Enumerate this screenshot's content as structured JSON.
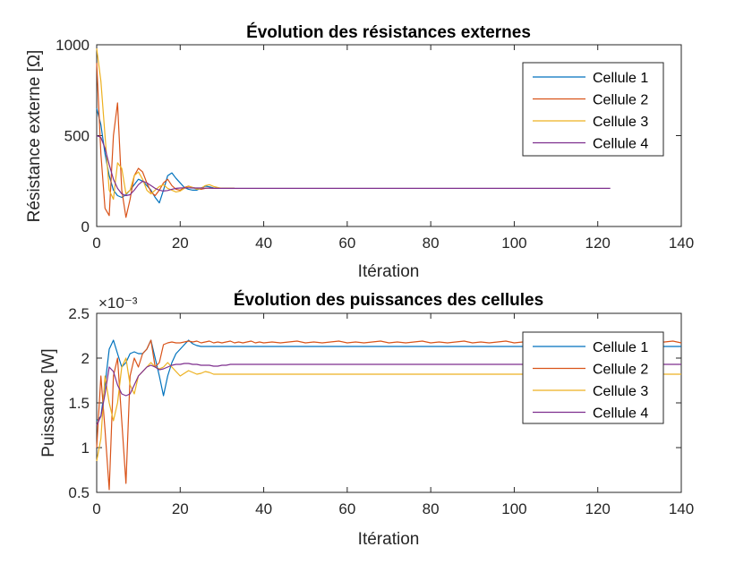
{
  "chart_data": [
    {
      "type": "line",
      "title": "Évolution des résistances externes",
      "xlabel": "Itération",
      "ylabel": "Résistance externe [Ω]",
      "xlim": [
        0,
        140
      ],
      "ylim": [
        0,
        1000
      ],
      "xticks": [
        0,
        20,
        40,
        60,
        80,
        100,
        120,
        140
      ],
      "yticks": [
        0,
        500,
        1000
      ],
      "xtick_labels": [
        "0",
        "20",
        "40",
        "60",
        "80",
        "100",
        "120",
        "140"
      ],
      "ytick_labels": [
        "0",
        "500",
        "1000"
      ],
      "exponent_label": "",
      "legend_position": "top-right",
      "grid": false,
      "series": [
        {
          "name": "Cellule 1",
          "color": "#0072BD",
          "x": [
            0,
            1,
            2,
            3,
            4,
            5,
            6,
            7,
            8,
            9,
            10,
            11,
            12,
            13,
            14,
            15,
            16,
            17,
            18,
            19,
            20,
            21,
            22,
            23,
            24,
            25,
            26,
            27,
            28,
            29,
            30,
            31,
            32,
            33
          ],
          "y": [
            650,
            560,
            400,
            280,
            200,
            170,
            160,
            175,
            200,
            230,
            260,
            250,
            225,
            200,
            160,
            130,
            200,
            280,
            295,
            265,
            240,
            215,
            205,
            200,
            200,
            212,
            222,
            218,
            212,
            210,
            210,
            210,
            210,
            210
          ]
        },
        {
          "name": "Cellule 2",
          "color": "#D95319",
          "x": [
            0,
            1,
            2,
            3,
            4,
            5,
            6,
            7,
            8,
            9,
            10,
            11,
            12,
            13,
            14,
            15,
            16,
            17,
            18,
            19,
            20,
            21,
            22,
            23,
            24,
            25,
            26,
            27,
            28,
            29,
            30,
            31,
            32,
            33
          ],
          "y": [
            900,
            400,
            100,
            60,
            500,
            680,
            200,
            50,
            150,
            280,
            320,
            300,
            240,
            190,
            170,
            200,
            240,
            260,
            225,
            205,
            200,
            215,
            222,
            215,
            210,
            205,
            210,
            212,
            210,
            210,
            210,
            210,
            210,
            210
          ]
        },
        {
          "name": "Cellule 3",
          "color": "#EDB120",
          "x": [
            0,
            1,
            2,
            3,
            4,
            5,
            6,
            7,
            8,
            9,
            10,
            11,
            12,
            13,
            14,
            15,
            16,
            17,
            18,
            19,
            20,
            21,
            22,
            23,
            24,
            25,
            26,
            27,
            28,
            29,
            30,
            31,
            32,
            33
          ],
          "y": [
            980,
            800,
            500,
            200,
            150,
            350,
            320,
            180,
            200,
            280,
            300,
            260,
            200,
            180,
            200,
            220,
            230,
            210,
            200,
            190,
            195,
            210,
            220,
            215,
            205,
            210,
            225,
            230,
            220,
            215,
            210,
            210,
            210,
            210
          ]
        },
        {
          "name": "Cellule 4",
          "color": "#7E2F8E",
          "x": [
            0,
            1,
            2,
            3,
            4,
            5,
            6,
            7,
            8,
            9,
            10,
            11,
            12,
            13,
            14,
            15,
            16,
            17,
            18,
            19,
            20,
            21,
            22,
            23,
            24,
            25,
            26,
            27,
            28,
            29,
            30,
            31,
            32,
            33,
            40,
            60,
            80,
            100,
            120,
            123
          ],
          "y": [
            500,
            490,
            430,
            340,
            260,
            210,
            180,
            170,
            175,
            200,
            230,
            250,
            240,
            225,
            210,
            200,
            195,
            198,
            205,
            210,
            212,
            213,
            213,
            212,
            212,
            212,
            211,
            211,
            210,
            210,
            210,
            210,
            210,
            210,
            210,
            210,
            210,
            210,
            210,
            210
          ]
        }
      ]
    },
    {
      "type": "line",
      "title": "Évolution des puissances des cellules",
      "xlabel": "Itération",
      "ylabel": "Puissance [W]",
      "xlim": [
        0,
        140
      ],
      "ylim": [
        0.5,
        2.5
      ],
      "xticks": [
        0,
        20,
        40,
        60,
        80,
        100,
        120,
        140
      ],
      "yticks": [
        0.5,
        1,
        1.5,
        2,
        2.5
      ],
      "xtick_labels": [
        "0",
        "20",
        "40",
        "60",
        "80",
        "100",
        "120",
        "140"
      ],
      "ytick_labels": [
        "0.5",
        "1",
        "1.5",
        "2",
        "2.5"
      ],
      "y_multiplier": 0.001,
      "exponent_label": "×10⁻³",
      "legend_position": "top-right",
      "grid": false,
      "series": [
        {
          "name": "Cellule 1",
          "color": "#0072BD",
          "x": [
            0,
            1,
            2,
            3,
            4,
            5,
            6,
            7,
            8,
            9,
            10,
            11,
            12,
            13,
            14,
            15,
            16,
            17,
            18,
            19,
            20,
            21,
            22,
            23,
            24,
            25,
            26,
            28,
            30,
            35,
            40,
            60,
            80,
            100,
            120,
            140
          ],
          "y": [
            1.3,
            1.35,
            1.7,
            2.1,
            2.2,
            2.05,
            1.9,
            1.95,
            2.05,
            2.07,
            2.05,
            2.05,
            2.1,
            2.2,
            2.0,
            1.8,
            1.58,
            1.8,
            1.95,
            2.05,
            2.1,
            2.15,
            2.2,
            2.16,
            2.14,
            2.13,
            2.13,
            2.13,
            2.13,
            2.13,
            2.13,
            2.13,
            2.13,
            2.13,
            2.13,
            2.13
          ]
        },
        {
          "name": "Cellule 2",
          "color": "#D95319",
          "x": [
            0,
            1,
            2,
            3,
            4,
            5,
            6,
            7,
            8,
            9,
            10,
            11,
            12,
            13,
            14,
            15,
            16,
            17,
            18,
            19,
            20,
            21,
            22,
            23,
            24,
            25,
            26,
            27,
            28,
            29,
            30,
            31,
            32,
            33,
            34,
            35,
            36,
            37,
            38,
            39,
            40,
            42,
            44,
            46,
            48,
            50,
            52,
            54,
            56,
            58,
            60,
            62,
            64,
            66,
            68,
            70,
            72,
            74,
            76,
            78,
            80,
            82,
            84,
            86,
            88,
            90,
            92,
            94,
            96,
            98,
            100,
            102,
            104,
            106,
            108,
            110,
            112,
            114,
            116,
            118,
            120,
            122,
            124,
            126,
            128,
            130,
            132,
            134,
            136,
            138,
            140
          ],
          "y": [
            1.0,
            1.8,
            1.2,
            0.53,
            1.8,
            2.0,
            1.3,
            0.6,
            1.8,
            2.0,
            1.9,
            2.05,
            2.1,
            2.2,
            1.9,
            1.95,
            2.15,
            2.17,
            2.18,
            2.17,
            2.17,
            2.18,
            2.19,
            2.18,
            2.19,
            2.17,
            2.18,
            2.19,
            2.17,
            2.18,
            2.17,
            2.18,
            2.19,
            2.17,
            2.18,
            2.17,
            2.18,
            2.19,
            2.17,
            2.18,
            2.17,
            2.18,
            2.17,
            2.18,
            2.19,
            2.17,
            2.18,
            2.17,
            2.18,
            2.19,
            2.17,
            2.18,
            2.17,
            2.18,
            2.19,
            2.17,
            2.18,
            2.17,
            2.18,
            2.19,
            2.17,
            2.18,
            2.17,
            2.18,
            2.19,
            2.17,
            2.18,
            2.17,
            2.18,
            2.19,
            2.17,
            2.18,
            2.17,
            2.18,
            2.19,
            2.17,
            2.18,
            2.17,
            2.18,
            2.19,
            2.17,
            2.18,
            2.17,
            2.18,
            2.19,
            2.17,
            2.18,
            2.17,
            2.18,
            2.19,
            2.17
          ]
        },
        {
          "name": "Cellule 3",
          "color": "#EDB120",
          "x": [
            0,
            1,
            2,
            3,
            4,
            5,
            6,
            7,
            8,
            9,
            10,
            11,
            12,
            13,
            14,
            15,
            16,
            17,
            18,
            19,
            20,
            21,
            22,
            23,
            24,
            25,
            26,
            27,
            28,
            29,
            30,
            35,
            40,
            60,
            80,
            100,
            120,
            140
          ],
          "y": [
            0.85,
            1.1,
            1.8,
            1.5,
            1.3,
            1.5,
            1.9,
            2.0,
            1.7,
            1.6,
            1.8,
            1.85,
            1.9,
            1.95,
            1.9,
            1.88,
            1.9,
            1.95,
            1.9,
            1.85,
            1.8,
            1.83,
            1.86,
            1.84,
            1.82,
            1.83,
            1.85,
            1.84,
            1.82,
            1.82,
            1.82,
            1.82,
            1.82,
            1.82,
            1.82,
            1.82,
            1.82,
            1.82
          ]
        },
        {
          "name": "Cellule 4",
          "color": "#7E2F8E",
          "x": [
            0,
            1,
            2,
            3,
            4,
            5,
            6,
            7,
            8,
            9,
            10,
            11,
            12,
            13,
            14,
            15,
            16,
            17,
            18,
            19,
            20,
            21,
            22,
            23,
            24,
            25,
            26,
            27,
            28,
            29,
            30,
            31,
            32,
            35,
            40,
            60,
            80,
            100,
            120,
            140
          ],
          "y": [
            1.25,
            1.35,
            1.6,
            1.9,
            1.85,
            1.7,
            1.6,
            1.58,
            1.6,
            1.7,
            1.8,
            1.85,
            1.9,
            1.92,
            1.9,
            1.87,
            1.88,
            1.9,
            1.92,
            1.93,
            1.93,
            1.94,
            1.94,
            1.93,
            1.93,
            1.92,
            1.92,
            1.92,
            1.91,
            1.91,
            1.92,
            1.92,
            1.93,
            1.93,
            1.93,
            1.93,
            1.93,
            1.93,
            1.93,
            1.93
          ]
        }
      ]
    }
  ]
}
